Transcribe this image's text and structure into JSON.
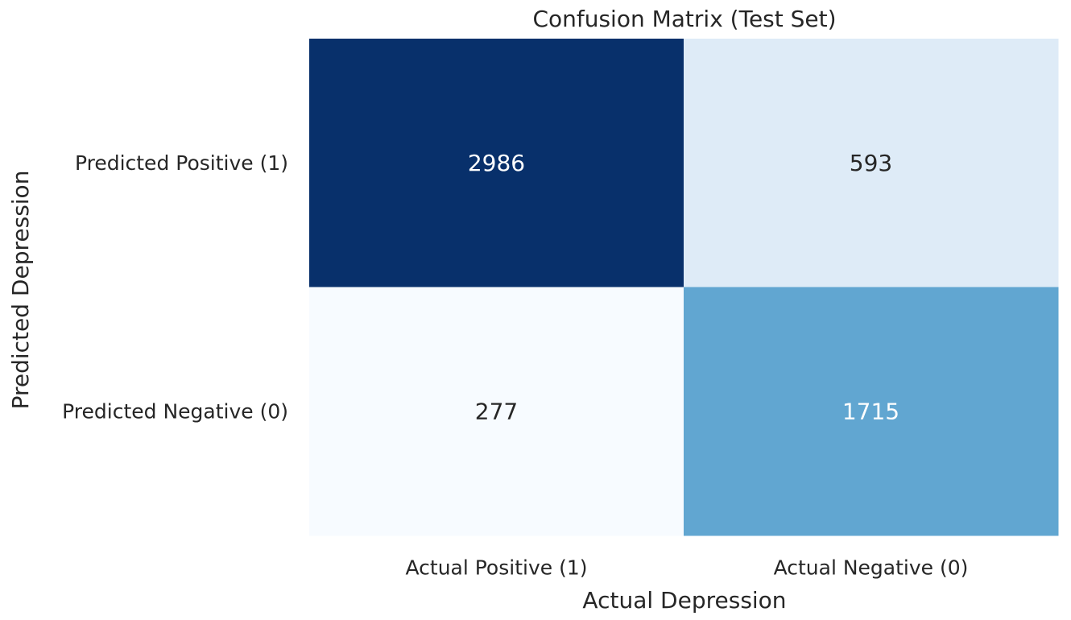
{
  "chart_data": {
    "type": "heatmap",
    "title": "Confusion Matrix (Test Set)",
    "xlabel": "Actual Depression",
    "ylabel": "Predicted Depression",
    "x_categories": [
      "Actual Positive (1)",
      "Actual Negative (0)"
    ],
    "y_categories": [
      "Predicted Positive (1)",
      "Predicted Negative (0)"
    ],
    "values": [
      [
        2986,
        593
      ],
      [
        277,
        1715
      ]
    ],
    "colormap": "Blues",
    "colorbar": false,
    "cell_colors": [
      [
        "#08306b",
        "#deebf7"
      ],
      [
        "#f7fbff",
        "#61a6d1"
      ]
    ],
    "cell_text_colors": [
      [
        "#ffffff",
        "#262626"
      ],
      [
        "#262626",
        "#ffffff"
      ]
    ]
  }
}
